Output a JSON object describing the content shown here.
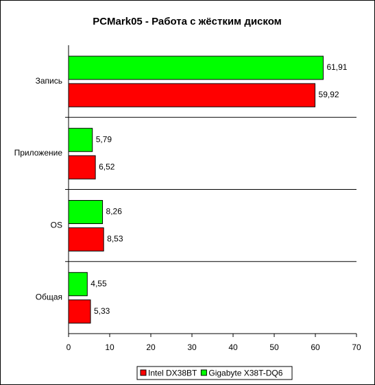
{
  "chart_data": {
    "type": "bar",
    "orientation": "horizontal",
    "title": "PCMark05 - Работа с жёстким диском",
    "categories": [
      "Запись",
      "Приложение",
      "OS",
      "Общая"
    ],
    "series": [
      {
        "name": "Intel DX38BT",
        "color": "#ff0000",
        "values": [
          59.92,
          6.52,
          8.53,
          5.33
        ],
        "value_labels": [
          "59,92",
          "6,52",
          "8,53",
          "5,33"
        ]
      },
      {
        "name": "Gigabyte X38T-DQ6",
        "color": "#00ff00",
        "values": [
          61.91,
          5.79,
          8.26,
          4.55
        ],
        "value_labels": [
          "61,91",
          "5,79",
          "8,26",
          "4,55"
        ]
      }
    ],
    "xlim": [
      0,
      70
    ],
    "xticks": [
      0,
      10,
      20,
      30,
      40,
      50,
      60,
      70
    ],
    "legend": "bottom"
  }
}
